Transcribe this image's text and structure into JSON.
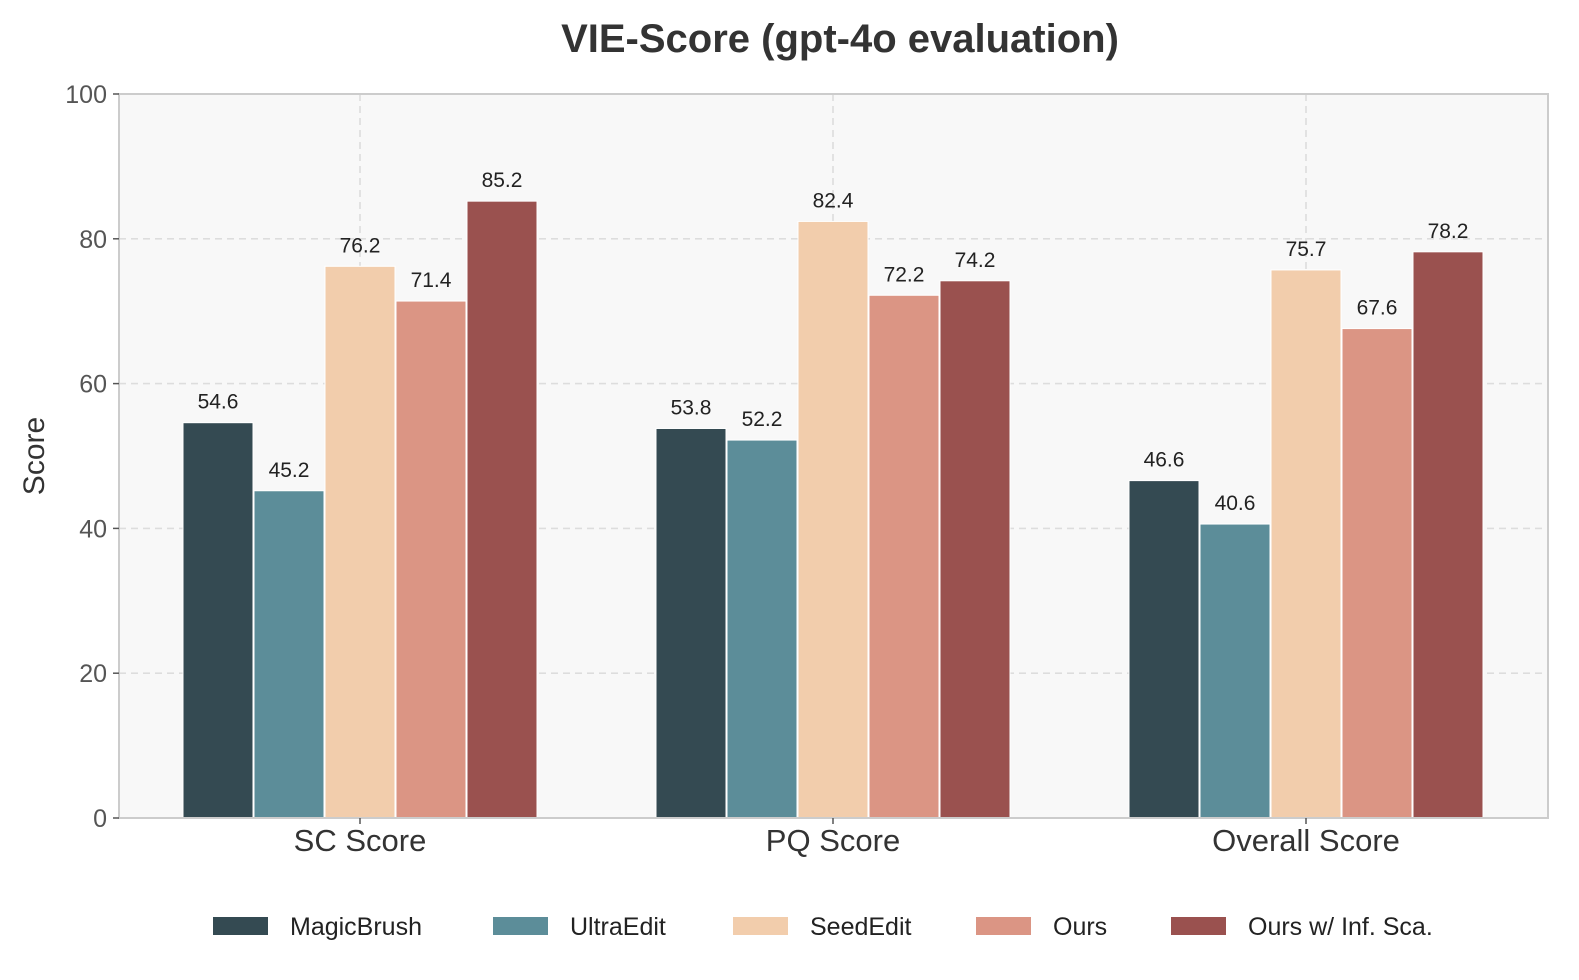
{
  "chart_data": {
    "type": "bar",
    "title": "VIE-Score (gpt-4o evaluation)",
    "xlabel": "",
    "ylabel": "Score",
    "ylim": [
      0,
      100
    ],
    "yticks": [
      "0",
      "20",
      "40",
      "60",
      "80",
      "100"
    ],
    "grid": true,
    "legend_position": "bottom",
    "categories": [
      "SC Score",
      "PQ Score",
      "Overall Score"
    ],
    "series": [
      {
        "name": "MagicBrush",
        "color": "#344a52",
        "values": [
          54.6,
          53.8,
          46.6
        ]
      },
      {
        "name": "UltraEdit",
        "color": "#5c8d99",
        "values": [
          45.2,
          52.2,
          40.6
        ]
      },
      {
        "name": "SeedEdit",
        "color": "#f2cdac",
        "values": [
          76.2,
          82.4,
          75.7
        ]
      },
      {
        "name": "Ours",
        "color": "#db9584",
        "values": [
          71.4,
          72.2,
          67.6
        ]
      },
      {
        "name": "Ours w/ Inf. Sca.",
        "color": "#9a514f",
        "values": [
          85.2,
          74.2,
          78.2
        ]
      }
    ]
  }
}
